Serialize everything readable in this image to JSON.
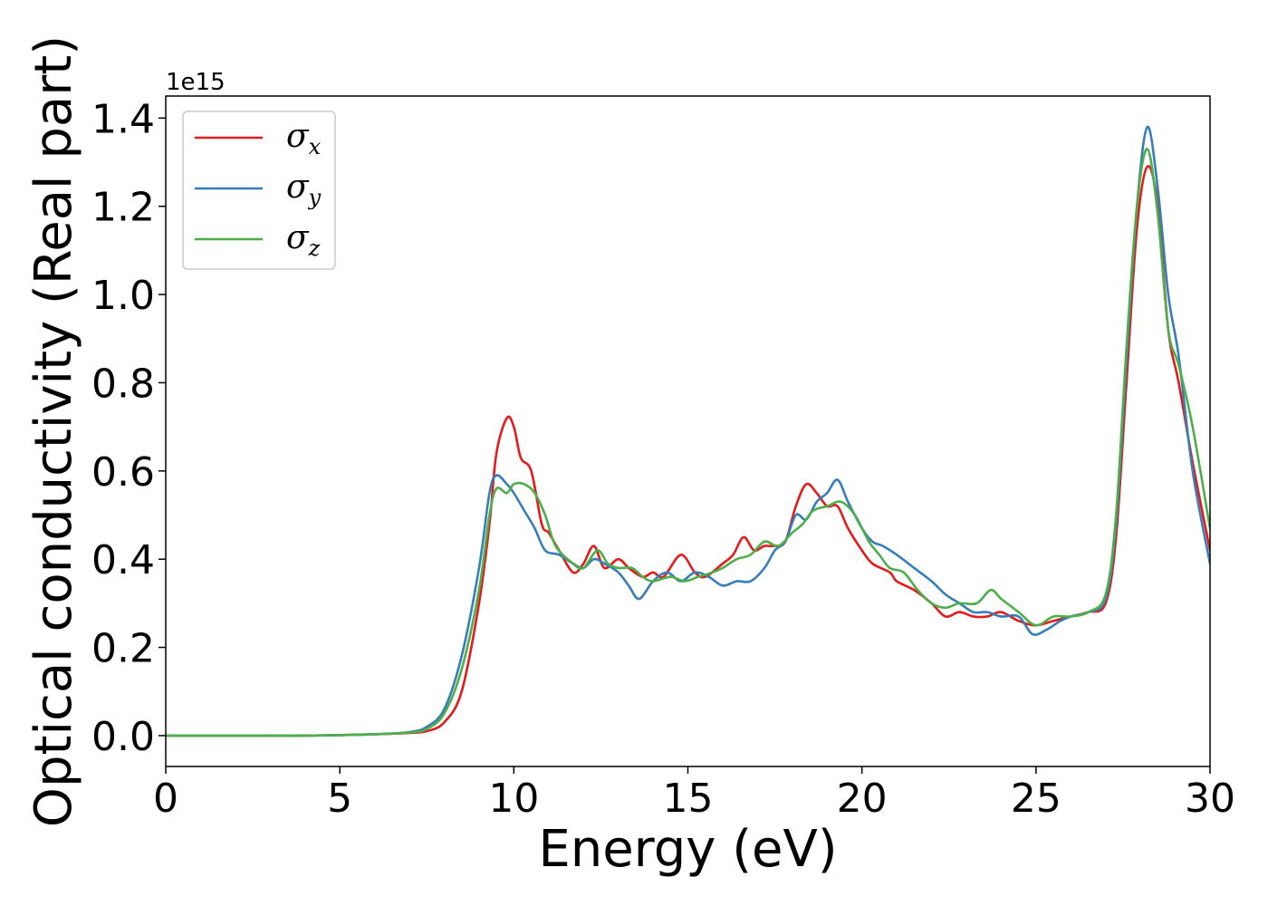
{
  "chart_data": {
    "type": "line",
    "title": "",
    "xlabel": "Energy (eV)",
    "ylabel": "Optical conductivity (Real part)",
    "y_offset_label": "1e15",
    "xlim": [
      0,
      30
    ],
    "ylim": [
      -0.07,
      1.45
    ],
    "xticks": [
      0,
      5,
      10,
      15,
      20,
      25,
      30
    ],
    "xtick_labels": [
      "0",
      "5",
      "10",
      "15",
      "20",
      "25",
      "30"
    ],
    "yticks": [
      0.0,
      0.2,
      0.4,
      0.6,
      0.8,
      1.0,
      1.2,
      1.4
    ],
    "ytick_labels": [
      "0.0",
      "0.2",
      "0.4",
      "0.6",
      "0.8",
      "1.0",
      "1.2",
      "1.4"
    ],
    "grid": false,
    "legend_position": "top-left",
    "series": [
      {
        "name": "σx",
        "symbol": "σ",
        "subscript": "x",
        "color": "#e41a1c",
        "points": [
          [
            0,
            0
          ],
          [
            2,
            0
          ],
          [
            4,
            0
          ],
          [
            6,
            0.003
          ],
          [
            7,
            0.006
          ],
          [
            7.5,
            0.01
          ],
          [
            8,
            0.03
          ],
          [
            8.5,
            0.1
          ],
          [
            9,
            0.3
          ],
          [
            9.3,
            0.48
          ],
          [
            9.5,
            0.64
          ],
          [
            9.8,
            0.72
          ],
          [
            10,
            0.7
          ],
          [
            10.2,
            0.63
          ],
          [
            10.5,
            0.6
          ],
          [
            10.8,
            0.48
          ],
          [
            11,
            0.46
          ],
          [
            11.3,
            0.42
          ],
          [
            11.7,
            0.37
          ],
          [
            12,
            0.39
          ],
          [
            12.3,
            0.43
          ],
          [
            12.6,
            0.38
          ],
          [
            13,
            0.4
          ],
          [
            13.3,
            0.38
          ],
          [
            13.7,
            0.36
          ],
          [
            14,
            0.37
          ],
          [
            14.3,
            0.36
          ],
          [
            14.8,
            0.41
          ],
          [
            15.2,
            0.37
          ],
          [
            15.5,
            0.36
          ],
          [
            16,
            0.39
          ],
          [
            16.3,
            0.41
          ],
          [
            16.6,
            0.45
          ],
          [
            16.9,
            0.42
          ],
          [
            17.2,
            0.43
          ],
          [
            17.5,
            0.43
          ],
          [
            17.8,
            0.44
          ],
          [
            18.1,
            0.52
          ],
          [
            18.4,
            0.57
          ],
          [
            18.7,
            0.55
          ],
          [
            19,
            0.52
          ],
          [
            19.3,
            0.52
          ],
          [
            19.6,
            0.47
          ],
          [
            20,
            0.42
          ],
          [
            20.3,
            0.39
          ],
          [
            20.8,
            0.37
          ],
          [
            21,
            0.35
          ],
          [
            21.5,
            0.33
          ],
          [
            22,
            0.3
          ],
          [
            22.4,
            0.27
          ],
          [
            22.8,
            0.28
          ],
          [
            23.2,
            0.27
          ],
          [
            23.6,
            0.27
          ],
          [
            24,
            0.28
          ],
          [
            24.5,
            0.26
          ],
          [
            25,
            0.25
          ],
          [
            25.5,
            0.26
          ],
          [
            26,
            0.27
          ],
          [
            26.5,
            0.28
          ],
          [
            27,
            0.3
          ],
          [
            27.3,
            0.45
          ],
          [
            27.6,
            0.8
          ],
          [
            27.9,
            1.15
          ],
          [
            28.2,
            1.29
          ],
          [
            28.5,
            1.2
          ],
          [
            28.8,
            0.92
          ],
          [
            29.1,
            0.8
          ],
          [
            29.5,
            0.62
          ],
          [
            30,
            0.42
          ]
        ]
      },
      {
        "name": "σy",
        "symbol": "σ",
        "subscript": "y",
        "color": "#377eb8",
        "points": [
          [
            0,
            0
          ],
          [
            2,
            0
          ],
          [
            4,
            0
          ],
          [
            6,
            0.003
          ],
          [
            7,
            0.008
          ],
          [
            7.5,
            0.02
          ],
          [
            8,
            0.06
          ],
          [
            8.5,
            0.18
          ],
          [
            9,
            0.38
          ],
          [
            9.3,
            0.55
          ],
          [
            9.5,
            0.59
          ],
          [
            9.8,
            0.57
          ],
          [
            10,
            0.55
          ],
          [
            10.3,
            0.51
          ],
          [
            10.6,
            0.47
          ],
          [
            10.9,
            0.42
          ],
          [
            11.3,
            0.41
          ],
          [
            11.7,
            0.39
          ],
          [
            12,
            0.38
          ],
          [
            12.3,
            0.4
          ],
          [
            12.6,
            0.39
          ],
          [
            13,
            0.37
          ],
          [
            13.3,
            0.34
          ],
          [
            13.6,
            0.31
          ],
          [
            14,
            0.35
          ],
          [
            14.4,
            0.37
          ],
          [
            14.8,
            0.35
          ],
          [
            15.2,
            0.37
          ],
          [
            15.6,
            0.36
          ],
          [
            16,
            0.34
          ],
          [
            16.4,
            0.35
          ],
          [
            16.8,
            0.35
          ],
          [
            17.2,
            0.38
          ],
          [
            17.5,
            0.42
          ],
          [
            17.8,
            0.44
          ],
          [
            18.1,
            0.5
          ],
          [
            18.4,
            0.49
          ],
          [
            18.7,
            0.53
          ],
          [
            19,
            0.55
          ],
          [
            19.3,
            0.58
          ],
          [
            19.6,
            0.53
          ],
          [
            20,
            0.47
          ],
          [
            20.3,
            0.44
          ],
          [
            20.6,
            0.43
          ],
          [
            21,
            0.41
          ],
          [
            21.5,
            0.38
          ],
          [
            22,
            0.35
          ],
          [
            22.4,
            0.32
          ],
          [
            22.8,
            0.3
          ],
          [
            23.2,
            0.28
          ],
          [
            23.6,
            0.28
          ],
          [
            24,
            0.27
          ],
          [
            24.5,
            0.27
          ],
          [
            24.9,
            0.23
          ],
          [
            25.3,
            0.24
          ],
          [
            25.7,
            0.26
          ],
          [
            26,
            0.27
          ],
          [
            26.5,
            0.28
          ],
          [
            27,
            0.31
          ],
          [
            27.3,
            0.48
          ],
          [
            27.6,
            0.85
          ],
          [
            27.9,
            1.2
          ],
          [
            28.2,
            1.38
          ],
          [
            28.5,
            1.24
          ],
          [
            28.8,
            1.0
          ],
          [
            29.1,
            0.86
          ],
          [
            29.5,
            0.6
          ],
          [
            30,
            0.39
          ]
        ]
      },
      {
        "name": "σz",
        "symbol": "σ",
        "subscript": "z",
        "color": "#4daf4a",
        "points": [
          [
            0,
            0
          ],
          [
            2,
            0
          ],
          [
            4,
            0
          ],
          [
            6,
            0.003
          ],
          [
            7,
            0.007
          ],
          [
            7.5,
            0.015
          ],
          [
            8,
            0.05
          ],
          [
            8.5,
            0.15
          ],
          [
            9,
            0.33
          ],
          [
            9.3,
            0.5
          ],
          [
            9.5,
            0.56
          ],
          [
            9.8,
            0.55
          ],
          [
            10,
            0.57
          ],
          [
            10.3,
            0.57
          ],
          [
            10.6,
            0.55
          ],
          [
            10.9,
            0.5
          ],
          [
            11.2,
            0.43
          ],
          [
            11.7,
            0.39
          ],
          [
            12,
            0.38
          ],
          [
            12.4,
            0.42
          ],
          [
            12.7,
            0.39
          ],
          [
            13,
            0.38
          ],
          [
            13.4,
            0.38
          ],
          [
            13.7,
            0.36
          ],
          [
            14,
            0.35
          ],
          [
            14.5,
            0.36
          ],
          [
            14.9,
            0.35
          ],
          [
            15.3,
            0.36
          ],
          [
            15.7,
            0.37
          ],
          [
            16,
            0.38
          ],
          [
            16.4,
            0.4
          ],
          [
            16.8,
            0.41
          ],
          [
            17.2,
            0.44
          ],
          [
            17.6,
            0.43
          ],
          [
            18,
            0.46
          ],
          [
            18.3,
            0.48
          ],
          [
            18.6,
            0.51
          ],
          [
            19,
            0.52
          ],
          [
            19.4,
            0.53
          ],
          [
            19.8,
            0.5
          ],
          [
            20.2,
            0.44
          ],
          [
            20.5,
            0.41
          ],
          [
            20.8,
            0.38
          ],
          [
            21.2,
            0.37
          ],
          [
            21.6,
            0.33
          ],
          [
            22,
            0.3
          ],
          [
            22.4,
            0.29
          ],
          [
            22.8,
            0.3
          ],
          [
            23.3,
            0.3
          ],
          [
            23.7,
            0.33
          ],
          [
            24,
            0.31
          ],
          [
            24.5,
            0.28
          ],
          [
            25,
            0.25
          ],
          [
            25.5,
            0.27
          ],
          [
            26,
            0.27
          ],
          [
            26.5,
            0.28
          ],
          [
            27,
            0.32
          ],
          [
            27.3,
            0.5
          ],
          [
            27.6,
            0.88
          ],
          [
            27.9,
            1.2
          ],
          [
            28.2,
            1.33
          ],
          [
            28.5,
            1.18
          ],
          [
            28.8,
            0.92
          ],
          [
            29.1,
            0.84
          ],
          [
            29.5,
            0.7
          ],
          [
            30,
            0.47
          ]
        ]
      }
    ]
  }
}
